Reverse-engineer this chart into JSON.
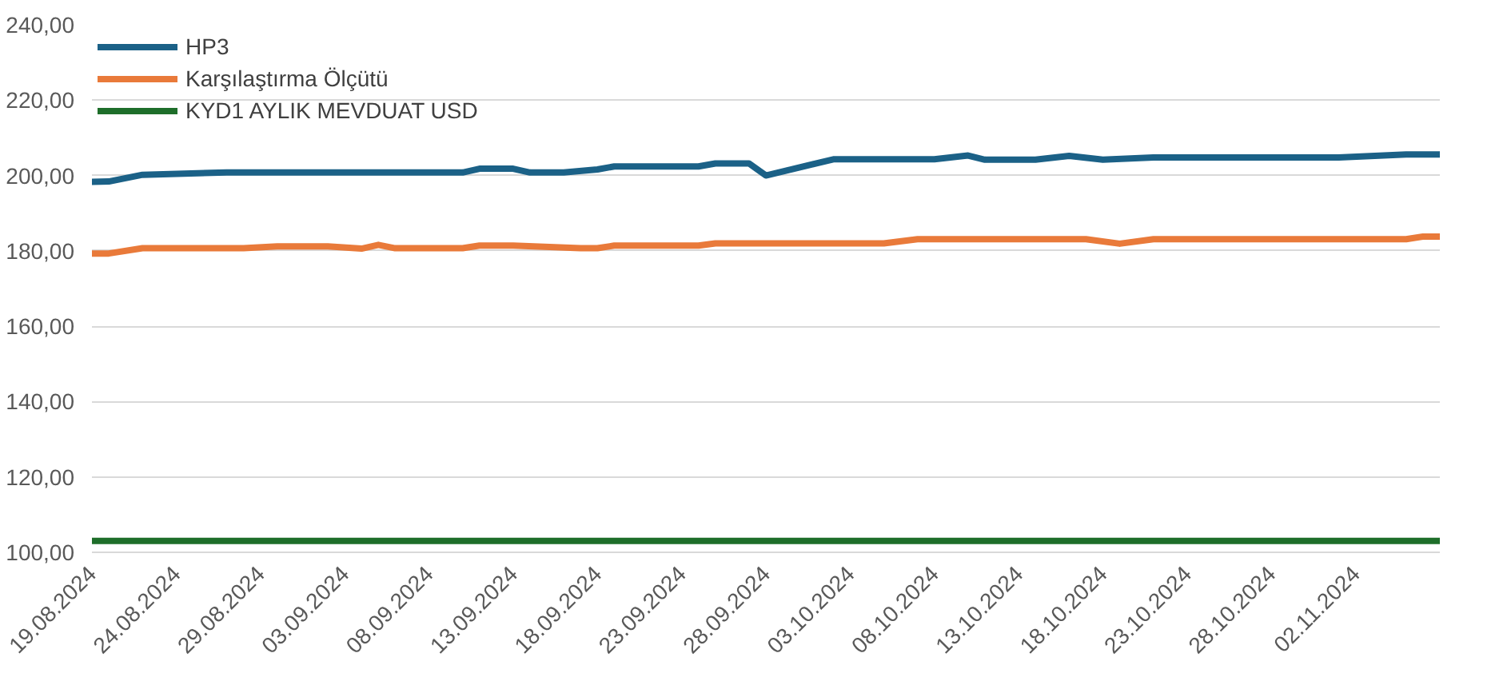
{
  "chart_data": {
    "type": "line",
    "xlim": [
      "2024-08-19",
      "2024-11-07"
    ],
    "xticks": [
      {
        "value": "2024-08-19",
        "label": "19.08.2024"
      },
      {
        "value": "2024-08-24",
        "label": "24.08.2024"
      },
      {
        "value": "2024-08-29",
        "label": "29.08.2024"
      },
      {
        "value": "2024-09-03",
        "label": "03.09.2024"
      },
      {
        "value": "2024-09-08",
        "label": "08.09.2024"
      },
      {
        "value": "2024-09-13",
        "label": "13.09.2024"
      },
      {
        "value": "2024-09-18",
        "label": "18.09.2024"
      },
      {
        "value": "2024-09-23",
        "label": "23.09.2024"
      },
      {
        "value": "2024-09-28",
        "label": "28.09.2024"
      },
      {
        "value": "2024-10-03",
        "label": "03.10.2024"
      },
      {
        "value": "2024-10-08",
        "label": "08.10.2024"
      },
      {
        "value": "2024-10-13",
        "label": "13.10.2024"
      },
      {
        "value": "2024-10-18",
        "label": "18.10.2024"
      },
      {
        "value": "2024-10-23",
        "label": "23.10.2024"
      },
      {
        "value": "2024-10-28",
        "label": "28.10.2024"
      },
      {
        "value": "2024-11-02",
        "label": "02.11.2024"
      }
    ],
    "ylim": [
      100,
      240
    ],
    "yticks": [
      {
        "value": 100,
        "label": "100,00"
      },
      {
        "value": 120,
        "label": "120,00"
      },
      {
        "value": 140,
        "label": "140,00"
      },
      {
        "value": 160,
        "label": "160,00"
      },
      {
        "value": 180,
        "label": "180,00"
      },
      {
        "value": 200,
        "label": "200,00"
      },
      {
        "value": 220,
        "label": "220,00"
      },
      {
        "value": 240,
        "label": "240,00"
      }
    ],
    "grid": "y",
    "legend": "top left",
    "line_style": "solid",
    "marker": "none",
    "series": [
      {
        "name": "HP3",
        "color": "#1b6187",
        "x": [
          "2024-08-19",
          "2024-08-20",
          "2024-08-22",
          "2024-08-27",
          "2024-09-10",
          "2024-09-11",
          "2024-09-13",
          "2024-09-14",
          "2024-09-16",
          "2024-09-18",
          "2024-09-19",
          "2024-09-24",
          "2024-09-25",
          "2024-09-27",
          "2024-09-28",
          "2024-10-02",
          "2024-10-08",
          "2024-10-10",
          "2024-10-11",
          "2024-10-14",
          "2024-10-16",
          "2024-10-18",
          "2024-10-21",
          "2024-11-01",
          "2024-11-05",
          "2024-11-07"
        ],
        "values": [
          198.3,
          198.4,
          200.2,
          200.8,
          200.8,
          201.8,
          201.8,
          200.8,
          200.8,
          201.6,
          202.4,
          202.4,
          203.2,
          203.2,
          200.0,
          204.3,
          204.3,
          205.3,
          204.2,
          204.2,
          205.2,
          204.2,
          204.8,
          204.8,
          205.6,
          205.6
        ]
      },
      {
        "name": "Karşılaştırma Ölçütü",
        "color": "#e97a3a",
        "x": [
          "2024-08-19",
          "2024-08-20",
          "2024-08-22",
          "2024-08-28",
          "2024-08-30",
          "2024-09-02",
          "2024-09-04",
          "2024-09-05",
          "2024-09-06",
          "2024-09-10",
          "2024-09-11",
          "2024-09-13",
          "2024-09-17",
          "2024-09-18",
          "2024-09-19",
          "2024-09-24",
          "2024-09-25",
          "2024-10-05",
          "2024-10-07",
          "2024-10-17",
          "2024-10-19",
          "2024-10-21",
          "2024-11-05",
          "2024-11-06",
          "2024-11-07"
        ],
        "values": [
          179.3,
          179.3,
          180.7,
          180.7,
          181.2,
          181.2,
          180.6,
          181.6,
          180.7,
          180.7,
          181.4,
          181.4,
          180.7,
          180.7,
          181.4,
          181.4,
          182.0,
          182.0,
          183.1,
          183.1,
          181.9,
          183.1,
          183.1,
          183.8,
          183.8
        ]
      },
      {
        "name": "KYD1 AYLIK MEVDUAT USD",
        "color": "#1e6e2a",
        "x": [
          "2024-08-19",
          "2024-11-07"
        ],
        "values": [
          103,
          103
        ]
      }
    ]
  }
}
